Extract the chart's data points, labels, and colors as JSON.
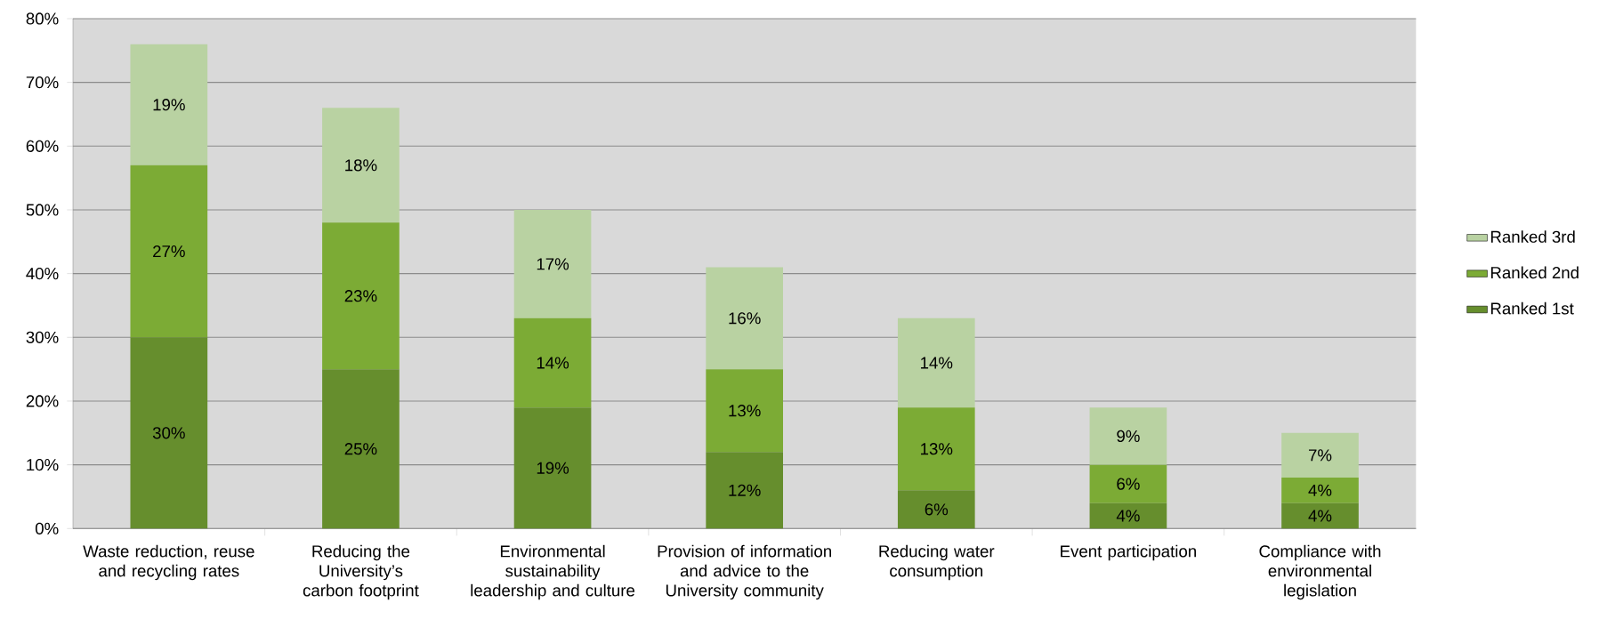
{
  "chart_data": {
    "type": "bar",
    "stacked": true,
    "categories": [
      "Waste reduction, reuse and recycling rates",
      "Reducing the University’s carbon footprint",
      "Environmental sustainability leadership and culture",
      "Provision of information and advice to the University community",
      "Reducing water consumption",
      "Event participation",
      "Compliance with environmental legislation"
    ],
    "series": [
      {
        "name": "Ranked 1st",
        "color": "#668e2d",
        "values": [
          30,
          25,
          19,
          12,
          6,
          4,
          4
        ],
        "value_labels": [
          "30%",
          "25%",
          "19%",
          "12%",
          "6%",
          "4%",
          "4%"
        ]
      },
      {
        "name": "Ranked 2nd",
        "color": "#7cab35",
        "values": [
          27,
          23,
          14,
          13,
          13,
          6,
          4
        ],
        "value_labels": [
          "27%",
          "23%",
          "14%",
          "13%",
          "13%",
          "6%",
          "4%"
        ]
      },
      {
        "name": "Ranked 3rd",
        "color": "#b9d2a2",
        "values": [
          19,
          18,
          17,
          16,
          14,
          9,
          7
        ],
        "value_labels": [
          "19%",
          "18%",
          "17%",
          "16%",
          "14%",
          "9%",
          "7%"
        ]
      }
    ],
    "ylim": [
      0,
      80
    ],
    "yticks": [
      {
        "value": 0,
        "label": "0%"
      },
      {
        "value": 10,
        "label": "10%"
      },
      {
        "value": 20,
        "label": "20%"
      },
      {
        "value": 30,
        "label": "30%"
      },
      {
        "value": 40,
        "label": "40%"
      },
      {
        "value": 50,
        "label": "50%"
      },
      {
        "value": 60,
        "label": "60%"
      },
      {
        "value": 70,
        "label": "70%"
      },
      {
        "value": 80,
        "label": "80%"
      }
    ],
    "grid": "y",
    "legend": "right"
  }
}
